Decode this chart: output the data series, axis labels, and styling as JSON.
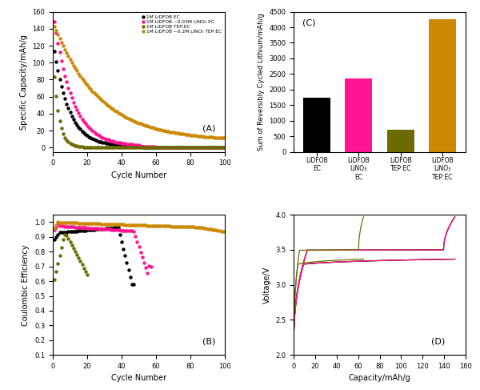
{
  "colors": {
    "black": "#000000",
    "magenta": "#FF1493",
    "olive": "#6B6B00",
    "orange": "#CC8800"
  },
  "legend_labels": [
    "1M LiDFOB EC",
    "1M LiDFOB ~0.03M LiNO₃ EC",
    "1M LiDFOB TEP:EC",
    "1M LiDFOB ~0.2M LiNO₃ TEP:EC"
  ],
  "bar_labels": [
    "LiDFOB\nEC",
    "LiDFOB\nLiNO₃\nEC",
    "LiDFOB\nTEP:EC",
    "LiDFOB\nLiNO₃\nTEP:EC"
  ],
  "bar_values": [
    1750,
    2350,
    700,
    4250
  ],
  "bar_colors": [
    "#000000",
    "#FF1493",
    "#6B6B00",
    "#CC8800"
  ],
  "subplot_labels": [
    "(A)",
    "(B)",
    "(C)",
    "(D)"
  ],
  "panel_A": {
    "xlabel": "Cycle Number",
    "ylabel": "Specific Capacity/mAh/g",
    "xlim": [
      0,
      100
    ],
    "ylim": [
      -5,
      160
    ],
    "yticks": [
      0,
      20,
      40,
      60,
      80,
      100,
      120,
      140,
      160
    ]
  },
  "panel_B": {
    "xlabel": "Cycle Number",
    "ylabel": "Coulombic Efficiency",
    "xlim": [
      0,
      100
    ],
    "ylim": [
      0.1,
      1.05
    ],
    "yticks": [
      0.1,
      0.2,
      0.3,
      0.4,
      0.5,
      0.6,
      0.7,
      0.8,
      0.9,
      1.0
    ]
  },
  "panel_C": {
    "ylabel": "Sum of Reversibly Cycled Lithium/mAh/g",
    "ylim": [
      0,
      4500
    ],
    "yticks": [
      0,
      500,
      1000,
      1500,
      2000,
      2500,
      3000,
      3500,
      4000,
      4500
    ]
  },
  "panel_D": {
    "xlabel": "Capacity/mAh/g",
    "ylabel": "Voltage/V",
    "xlim": [
      0,
      160
    ],
    "ylim": [
      2.0,
      4.0
    ],
    "yticks": [
      2.0,
      2.5,
      3.0,
      3.5,
      4.0
    ]
  }
}
